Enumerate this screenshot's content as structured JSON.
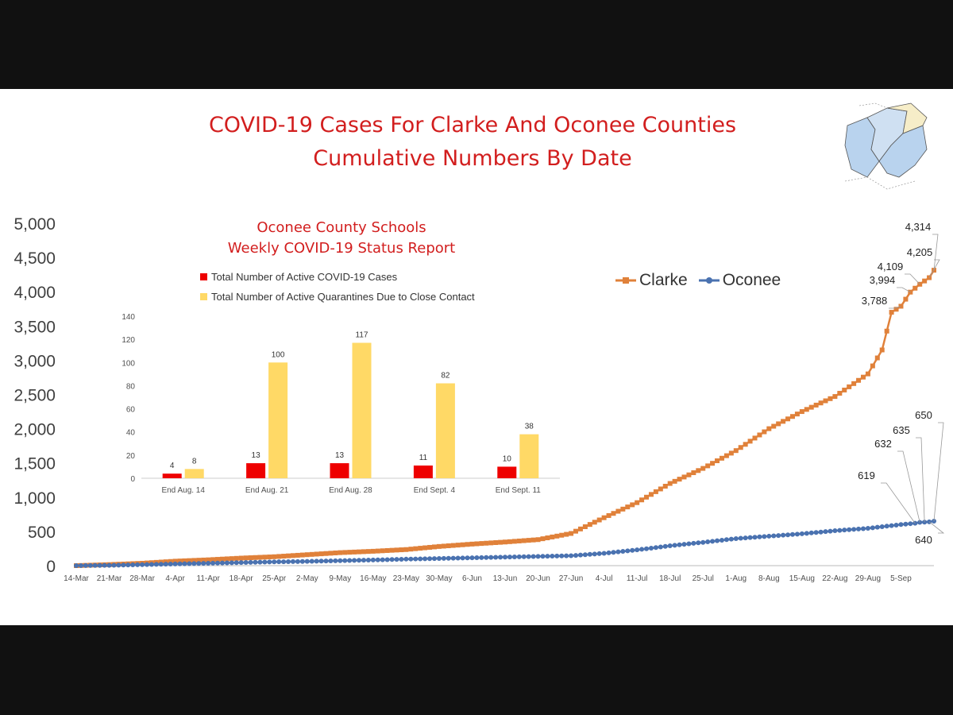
{
  "title_line1": "COVID-19 Cases For Clarke And Oconee Counties",
  "title_line2": "Cumulative Numbers By Date",
  "colors": {
    "clarke": "#e0813a",
    "oconee": "#4a72b0",
    "active_cases": "#ee0000",
    "quarantines": "#ffd966",
    "title": "#d21e1e"
  },
  "chart_data": [
    {
      "type": "line",
      "ylim": [
        0,
        5000
      ],
      "y_ticks": [
        "0",
        "500",
        "1,000",
        "1,500",
        "2,000",
        "2,500",
        "3,000",
        "3,500",
        "4,000",
        "4,500",
        "5,000"
      ],
      "x_ticks": [
        "14-Mar",
        "21-Mar",
        "28-Mar",
        "4-Apr",
        "11-Apr",
        "18-Apr",
        "25-Apr",
        "2-May",
        "9-May",
        "16-May",
        "23-May",
        "30-May",
        "6-Jun",
        "13-Jun",
        "20-Jun",
        "27-Jun",
        "4-Jul",
        "11-Jul",
        "18-Jul",
        "25-Jul",
        "1-Aug",
        "8-Aug",
        "15-Aug",
        "22-Aug",
        "29-Aug",
        "5-Sep"
      ],
      "x_start": "14-Mar",
      "x_end": "12-Sep",
      "series": [
        {
          "name": "Clarke",
          "points": [
            [
              "14-Mar",
              0
            ],
            [
              "21-Mar",
              15
            ],
            [
              "28-Mar",
              35
            ],
            [
              "4-Apr",
              65
            ],
            [
              "11-Apr",
              85
            ],
            [
              "18-Apr",
              110
            ],
            [
              "25-Apr",
              130
            ],
            [
              "2-May",
              160
            ],
            [
              "9-May",
              190
            ],
            [
              "16-May",
              210
            ],
            [
              "23-May",
              235
            ],
            [
              "30-May",
              280
            ],
            [
              "6-Jun",
              315
            ],
            [
              "13-Jun",
              345
            ],
            [
              "20-Jun",
              380
            ],
            [
              "27-Jun",
              470
            ],
            [
              "4-Jul",
              700
            ],
            [
              "11-Jul",
              920
            ],
            [
              "18-Jul",
              1200
            ],
            [
              "25-Jul",
              1420
            ],
            [
              "1-Aug",
              1680
            ],
            [
              "8-Aug",
              2000
            ],
            [
              "15-Aug",
              2250
            ],
            [
              "22-Aug",
              2470
            ],
            [
              "29-Aug",
              2800
            ],
            [
              "1-Sep",
              3150
            ],
            [
              "3-Sep",
              3700
            ],
            [
              "5-Sep",
              3788
            ],
            [
              "7-Sep",
              3994
            ],
            [
              "9-Sep",
              4109
            ],
            [
              "11-Sep",
              4205
            ],
            [
              "12-Sep",
              4314
            ]
          ]
        },
        {
          "name": "Oconee",
          "points": [
            [
              "14-Mar",
              0
            ],
            [
              "21-Mar",
              5
            ],
            [
              "28-Mar",
              15
            ],
            [
              "4-Apr",
              25
            ],
            [
              "11-Apr",
              35
            ],
            [
              "18-Apr",
              45
            ],
            [
              "25-Apr",
              55
            ],
            [
              "2-May",
              62
            ],
            [
              "9-May",
              72
            ],
            [
              "16-May",
              82
            ],
            [
              "23-May",
              95
            ],
            [
              "30-May",
              105
            ],
            [
              "6-Jun",
              115
            ],
            [
              "13-Jun",
              125
            ],
            [
              "20-Jun",
              135
            ],
            [
              "27-Jun",
              145
            ],
            [
              "4-Jul",
              180
            ],
            [
              "11-Jul",
              230
            ],
            [
              "18-Jul",
              290
            ],
            [
              "25-Jul",
              340
            ],
            [
              "1-Aug",
              395
            ],
            [
              "8-Aug",
              430
            ],
            [
              "15-Aug",
              465
            ],
            [
              "22-Aug",
              510
            ],
            [
              "29-Aug",
              545
            ],
            [
              "5-Sep",
              600
            ],
            [
              "8-Sep",
              619
            ],
            [
              "9-Sep",
              632
            ],
            [
              "10-Sep",
              635
            ],
            [
              "11-Sep",
              640
            ],
            [
              "12-Sep",
              650
            ]
          ]
        }
      ],
      "annotations": [
        {
          "label": "4,314",
          "series": "Clarke",
          "x": "12-Sep"
        },
        {
          "label": "4,205",
          "series": "Clarke",
          "x": "11-Sep"
        },
        {
          "label": "4,109",
          "series": "Clarke",
          "x": "9-Sep"
        },
        {
          "label": "3,994",
          "series": "Clarke",
          "x": "7-Sep"
        },
        {
          "label": "3,788",
          "series": "Clarke",
          "x": "5-Sep"
        },
        {
          "label": "650",
          "series": "Oconee",
          "x": "12-Sep"
        },
        {
          "label": "635",
          "series": "Oconee",
          "x": "10-Sep"
        },
        {
          "label": "632",
          "series": "Oconee",
          "x": "9-Sep"
        },
        {
          "label": "619",
          "series": "Oconee",
          "x": "8-Sep"
        },
        {
          "label": "640",
          "series": "Oconee",
          "x": "11-Sep"
        }
      ],
      "legend": "top-right",
      "grid": false
    },
    {
      "type": "bar",
      "title": "Oconee County Schools",
      "subtitle": "Weekly COVID-19 Status Report",
      "categories": [
        "End Aug. 14",
        "End Aug. 21",
        "End Aug. 28",
        "End Sept. 4",
        "End Sept. 11"
      ],
      "series": [
        {
          "name": "Total Number of Active COVID-19 Cases",
          "values": [
            4,
            13,
            13,
            11,
            10
          ]
        },
        {
          "name": "Total Number of Active Quarantines Due to Close Contact",
          "values": [
            8,
            100,
            117,
            82,
            38
          ]
        }
      ],
      "y_ticks": [
        "0",
        "20",
        "40",
        "60",
        "80",
        "100",
        "120",
        "140"
      ],
      "ylim": [
        0,
        140
      ],
      "legend": "top-left",
      "grid": false
    }
  ]
}
